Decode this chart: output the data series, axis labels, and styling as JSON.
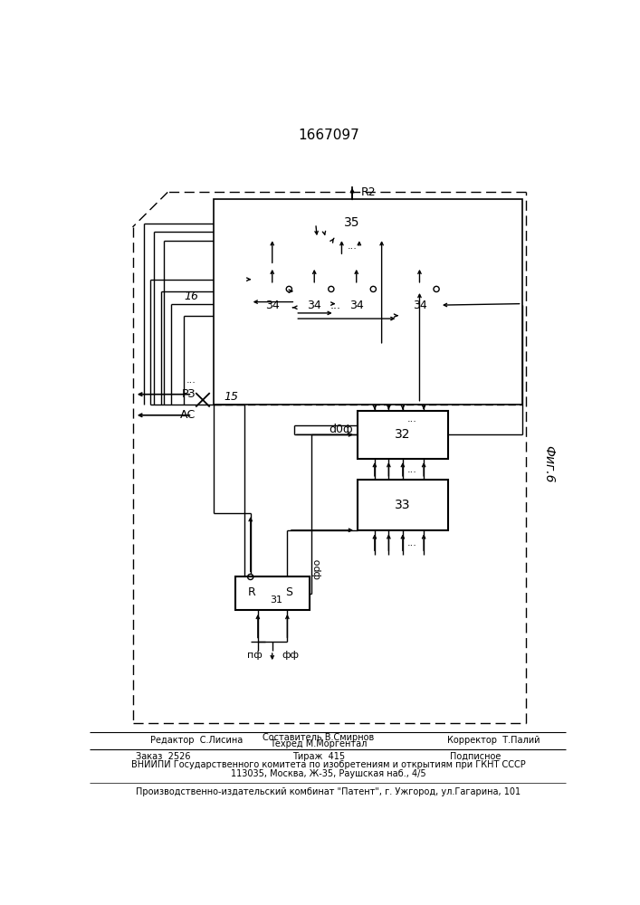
{
  "title": "1667097",
  "fig_label": "Фиг.6",
  "background_color": "#ffffff",
  "line_color": "#000000",
  "block_labels": {
    "b31": "31",
    "b32": "32",
    "b33": "33",
    "b34": "34",
    "b35": "35"
  },
  "signal_labels": {
    "rz": "РЗ",
    "ac": "АС",
    "dof": "d0ф",
    "fro": "фро",
    "pf": "пф",
    "ff": "фф",
    "r2": "R2",
    "n16": "16",
    "n15": "15",
    "r_label": "R",
    "s_label": "S"
  }
}
